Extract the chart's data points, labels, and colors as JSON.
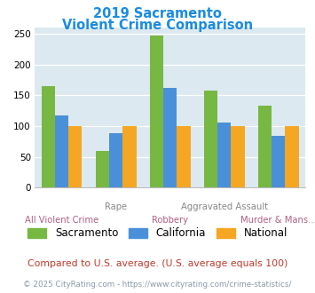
{
  "title_line1": "2019 Sacramento",
  "title_line2": "Violent Crime Comparison",
  "title_color": "#1b8be0",
  "categories": [
    "All Violent Crime",
    "Rape",
    "Robbery",
    "Aggravated Assault",
    "Murder & Mans..."
  ],
  "series": {
    "Sacramento": [
      165,
      60,
      248,
      158,
      133
    ],
    "California": [
      118,
      88,
      162,
      106,
      84
    ],
    "National": [
      100,
      100,
      100,
      100,
      100
    ]
  },
  "colors": {
    "Sacramento": "#77b843",
    "California": "#4a90d9",
    "National": "#f5a623"
  },
  "ylim": [
    0,
    260
  ],
  "yticks": [
    0,
    50,
    100,
    150,
    200,
    250
  ],
  "bg_color": "#dce9f0",
  "grid_color": "#ffffff",
  "note_text": "Compared to U.S. average. (U.S. average equals 100)",
  "note_color": "#c0392b",
  "copyright_text": "© 2025 CityRating.com - https://www.cityrating.com/crime-statistics/",
  "copyright_color": "#8899aa",
  "bar_width": 0.25
}
